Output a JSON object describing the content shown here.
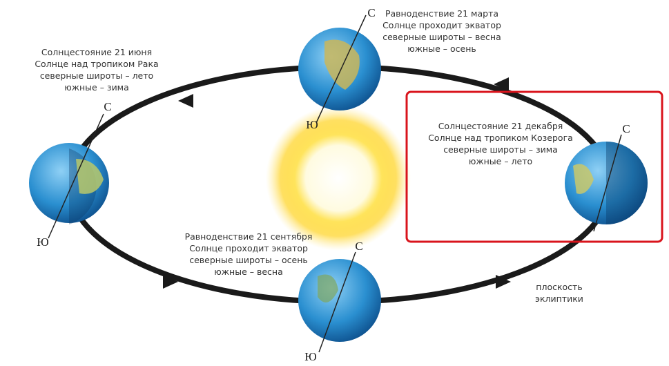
{
  "events": [
    {
      "lines": [
        "Равноденствие 21 марта",
        "Солнце проходит экватор",
        "северные широты – весна",
        "южные – осень"
      ]
    },
    {
      "lines": [
        "Солнцестояние 21 июня",
        "Солнце над тропиком Рака",
        "северные широты – лето",
        "южные – зима"
      ]
    },
    {
      "lines": [
        "Солнцестояние 21 декабря",
        "Солнце над тропиком Козерога",
        "северные широты – зима",
        "южные – лето"
      ]
    },
    {
      "lines": [
        "Равноденствие 21 сентября",
        "Солнце проходит экватор",
        "северные широты – осень",
        "южные – весна"
      ]
    }
  ],
  "poles": {
    "march": {
      "north": "С",
      "south": "Ю"
    },
    "june": {
      "north": "С",
      "south": "Ю"
    },
    "december": {
      "north": "С"
    },
    "september": {
      "north": "С",
      "south": "Ю"
    }
  },
  "plane_label": [
    "плоскость",
    "эклиптики"
  ]
}
